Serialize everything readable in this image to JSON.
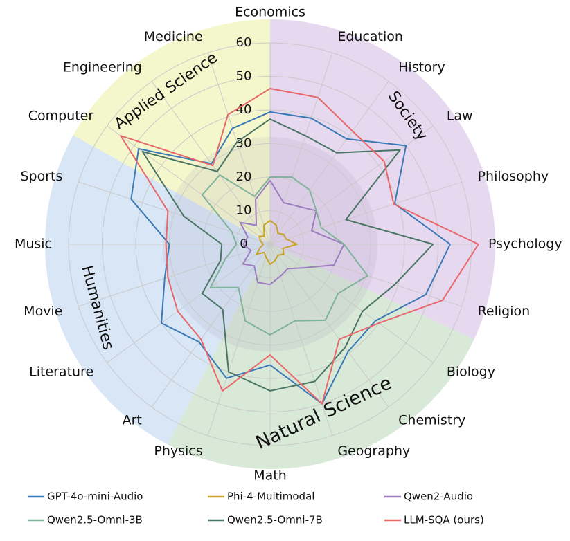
{
  "chart_data": {
    "type": "radar",
    "categories": [
      "Economics",
      "Education",
      "History",
      "Law",
      "Philosophy",
      "Psychology",
      "Religion",
      "Biology",
      "Chemistry",
      "Geography",
      "Math",
      "Physics",
      "Art",
      "Literature",
      "Movie",
      "Music",
      "Sports",
      "Computer",
      "Engineering",
      "Medicine"
    ],
    "series": [
      {
        "name": "GPT-4o-mini-Audio",
        "color": "#3a78b6",
        "values": [
          39.4,
          39.5,
          38.8,
          50,
          39,
          53.6,
          48.7,
          38.8,
          39.5,
          50,
          36,
          42,
          36,
          40,
          33,
          30,
          43.5,
          48.4,
          29.7,
          36.3
        ]
      },
      {
        "name": "Phi-4-Multimodal",
        "color": "#c9a227",
        "values": [
          7,
          6,
          4,
          5,
          5,
          8,
          4,
          5,
          4,
          5,
          6,
          4,
          3,
          5,
          3,
          2,
          3,
          4,
          3,
          6
        ]
      },
      {
        "name": "Qwen2-Audio",
        "color": "#9b7cbf",
        "values": [
          19,
          13,
          14,
          17,
          13,
          22,
          20,
          12,
          9,
          10,
          12,
          12,
          8,
          10,
          6,
          8,
          7,
          11,
          7,
          14
        ]
      },
      {
        "name": "Qwen2.5-Omni-3B",
        "color": "#7fb39a",
        "values": [
          20,
          21,
          20,
          17,
          16,
          22,
          30.5,
          25,
          28,
          24,
          27,
          24,
          16,
          22,
          14,
          10,
          12,
          25,
          25.5,
          15
        ]
      },
      {
        "name": "Qwen2.5-Omni-7B",
        "color": "#4a7564",
        "values": [
          37.3,
          34,
          33.7,
          47.8,
          23.7,
          48.5,
          39,
          34,
          38,
          43,
          43.7,
          40,
          24,
          25,
          15.5,
          14.4,
          27,
          47,
          26.8,
          32
        ]
      },
      {
        "name": "LLM-SQA (ours)",
        "color": "#e8676a",
        "values": [
          46.4,
          46,
          41.7,
          42,
          38.7,
          62,
          54,
          40,
          35,
          50,
          33,
          46,
          35,
          34,
          32,
          31,
          32,
          55,
          29,
          40.6
        ]
      }
    ],
    "ylim": [
      0,
      60
    ],
    "yticks": [
      0,
      10,
      20,
      30,
      40,
      50,
      60
    ],
    "grid": true,
    "legend": "bottom",
    "annotations": [
      "Society",
      "Natural Science",
      "Humanities",
      "Applied Science"
    ]
  }
}
